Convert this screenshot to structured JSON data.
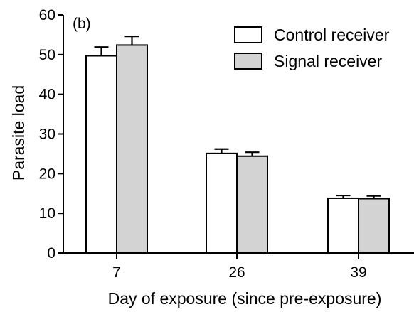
{
  "chart_data": {
    "type": "bar",
    "panel_label": "(b)",
    "categories": [
      "7",
      "26",
      "39"
    ],
    "series": [
      {
        "name": "Control receiver",
        "color": "#ffffff",
        "values": [
          49.7,
          25.1,
          13.8
        ],
        "errors": [
          2.2,
          1.1,
          0.7
        ]
      },
      {
        "name": "Signal receiver",
        "color": "#d3d3d3",
        "values": [
          52.4,
          24.4,
          13.7
        ],
        "errors": [
          2.2,
          1.0,
          0.7
        ]
      }
    ],
    "xlabel": "Day of exposure (since pre-exposure)",
    "ylabel": "Parasite load",
    "ylim": [
      0,
      60
    ],
    "yticks": [
      "0",
      "10",
      "20",
      "30",
      "40",
      "50",
      "60"
    ],
    "grid": false,
    "legend_position": "top-right"
  }
}
